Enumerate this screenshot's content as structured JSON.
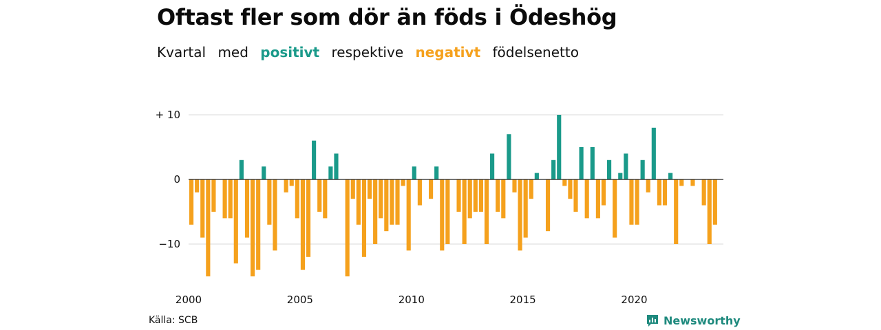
{
  "title": "Oftast fler som dör än föds i Ödeshög",
  "subtitle": {
    "w1": "Kvartal",
    "w2": "med",
    "positive_label": "positivt",
    "w3": "respektive",
    "negative_label": "negativt",
    "w4": "födelsenetto"
  },
  "source": "Källa: SCB",
  "brand": "Newsworthy",
  "brand_icon": "newsworthy-logo-icon",
  "colors": {
    "positive": "#1a9a8a",
    "negative": "#f5a11d",
    "grid": "#d9d9d9",
    "zero_line": "#222222",
    "brand": "#1f8a7e"
  },
  "chart_data": {
    "type": "bar",
    "xlabel": "",
    "ylabel": "",
    "ylim": [
      -16,
      11
    ],
    "grid": true,
    "y_ticks": [
      {
        "value": 10,
        "label": "+ 10"
      },
      {
        "value": 0,
        "label": "0"
      },
      {
        "value": -10,
        "label": "−10"
      }
    ],
    "x_ticks": [
      "2000",
      "2005",
      "2010",
      "2015",
      "2020"
    ],
    "series": [
      {
        "categories": [
          "2000K1",
          "2000K2",
          "2000K3",
          "2000K4",
          "2001K1",
          "2001K2",
          "2001K3",
          "2001K4",
          "2002K1",
          "2002K2",
          "2002K3",
          "2002K4",
          "2003K1",
          "2003K2",
          "2003K3",
          "2003K4",
          "2004K1",
          "2004K2",
          "2004K3",
          "2004K4",
          "2005K1",
          "2005K2",
          "2005K3",
          "2005K4",
          "2006K1",
          "2006K2",
          "2006K3",
          "2006K4",
          "2007K1",
          "2007K2",
          "2007K3",
          "2007K4",
          "2008K1",
          "2008K2",
          "2008K3",
          "2008K4",
          "2009K1",
          "2009K2",
          "2009K3",
          "2009K4",
          "2010K1",
          "2010K2",
          "2010K3",
          "2010K4",
          "2011K1",
          "2011K2",
          "2011K3",
          "2011K4",
          "2012K1",
          "2012K2",
          "2012K3",
          "2012K4",
          "2013K1",
          "2013K2",
          "2013K3",
          "2013K4",
          "2014K1",
          "2014K2",
          "2014K3",
          "2014K4",
          "2015K1",
          "2015K2",
          "2015K3",
          "2015K4",
          "2016K1",
          "2016K2",
          "2016K3",
          "2016K4",
          "2017K1",
          "2017K2",
          "2017K3",
          "2017K4",
          "2018K1",
          "2018K2",
          "2018K3",
          "2018K4",
          "2019K1",
          "2019K2",
          "2019K3",
          "2019K4",
          "2020K1",
          "2020K2",
          "2020K3",
          "2020K4",
          "2021K1",
          "2021K2",
          "2021K3",
          "2021K4",
          "2022K1",
          "2022K2",
          "2022K3",
          "2022K4",
          "2023K1",
          "2023K2",
          "2023K3",
          "2023K4"
        ],
        "values": [
          -7,
          -2,
          -9,
          -15,
          -5,
          0,
          -6,
          -6,
          -13,
          3,
          -9,
          -15,
          -14,
          2,
          -7,
          -11,
          0,
          -2,
          -1,
          -6,
          -14,
          -12,
          6,
          -5,
          -6,
          2,
          4,
          0,
          -15,
          -3,
          -7,
          -12,
          -3,
          -10,
          -6,
          -8,
          -7,
          -7,
          -1,
          -11,
          2,
          -4,
          0,
          -3,
          2,
          -11,
          -10,
          0,
          -5,
          -10,
          -6,
          -5,
          -5,
          -10,
          4,
          -5,
          -6,
          7,
          -2,
          -11,
          -9,
          -3,
          1,
          0,
          -8,
          3,
          10,
          -1,
          -3,
          -5,
          5,
          -6,
          5,
          -6,
          -4,
          3,
          -9,
          1,
          4,
          -7,
          -7,
          3,
          -2,
          8,
          -4,
          -4,
          1,
          -10,
          -1,
          0,
          -1,
          0,
          -4,
          -10,
          -7,
          0
        ]
      }
    ]
  }
}
